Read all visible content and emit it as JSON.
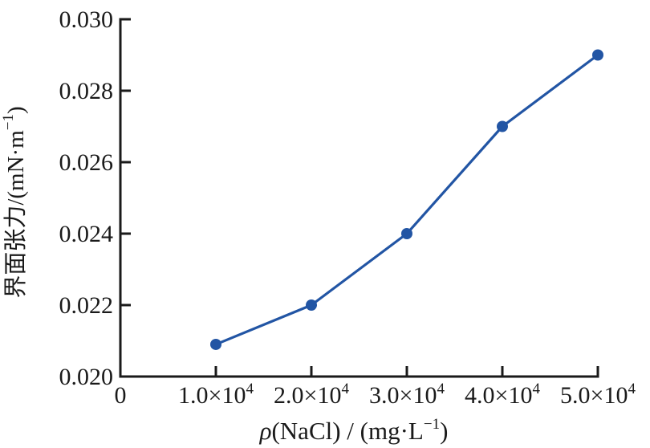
{
  "page": {
    "background_color": "#ffffff",
    "text_color": "#1a1a1a",
    "accent_color": "#2255a4"
  },
  "chart_data": {
    "type": "line",
    "title": "",
    "xlabel": "ρ(NaCl) / (mg·L−1)",
    "ylabel": "界面张力/(mN·m−1)",
    "xlabel_parts": [
      {
        "t": "ρ",
        "italic": true
      },
      {
        "t": "(NaCl) / (mg·L"
      },
      {
        "t": "−1",
        "sup": true
      },
      {
        "t": ")"
      }
    ],
    "ylabel_parts": [
      {
        "t": "界面张力/(mN·m"
      },
      {
        "t": "−1",
        "sup": true
      },
      {
        "t": ")"
      }
    ],
    "xlim": [
      0,
      50000
    ],
    "ylim": [
      0.02,
      0.03
    ],
    "grid": false,
    "legend": null,
    "x_ticks": [
      {
        "v": 0,
        "t": "0",
        "sup": ""
      },
      {
        "v": 10000,
        "t": "1.0×10",
        "sup": "4"
      },
      {
        "v": 20000,
        "t": "2.0×10",
        "sup": "4"
      },
      {
        "v": 30000,
        "t": "3.0×10",
        "sup": "4"
      },
      {
        "v": 40000,
        "t": "4.0×10",
        "sup": "4"
      },
      {
        "v": 50000,
        "t": "5.0×10",
        "sup": "4"
      }
    ],
    "y_ticks": [
      {
        "v": 0.02,
        "t": "0.020"
      },
      {
        "v": 0.022,
        "t": "0.022"
      },
      {
        "v": 0.024,
        "t": "0.024"
      },
      {
        "v": 0.026,
        "t": "0.026"
      },
      {
        "v": 0.028,
        "t": "0.028"
      },
      {
        "v": 0.03,
        "t": "0.030"
      }
    ],
    "series": [
      {
        "name": "interfacial-tension",
        "x": [
          10000,
          20000,
          30000,
          40000,
          50000
        ],
        "y": [
          0.0209,
          0.022,
          0.024,
          0.027,
          0.029
        ],
        "color": "#2255a4",
        "marker": "circle",
        "line_width": 3.2,
        "marker_radius": 7
      }
    ],
    "axis_color": "#1a1a1a"
  }
}
